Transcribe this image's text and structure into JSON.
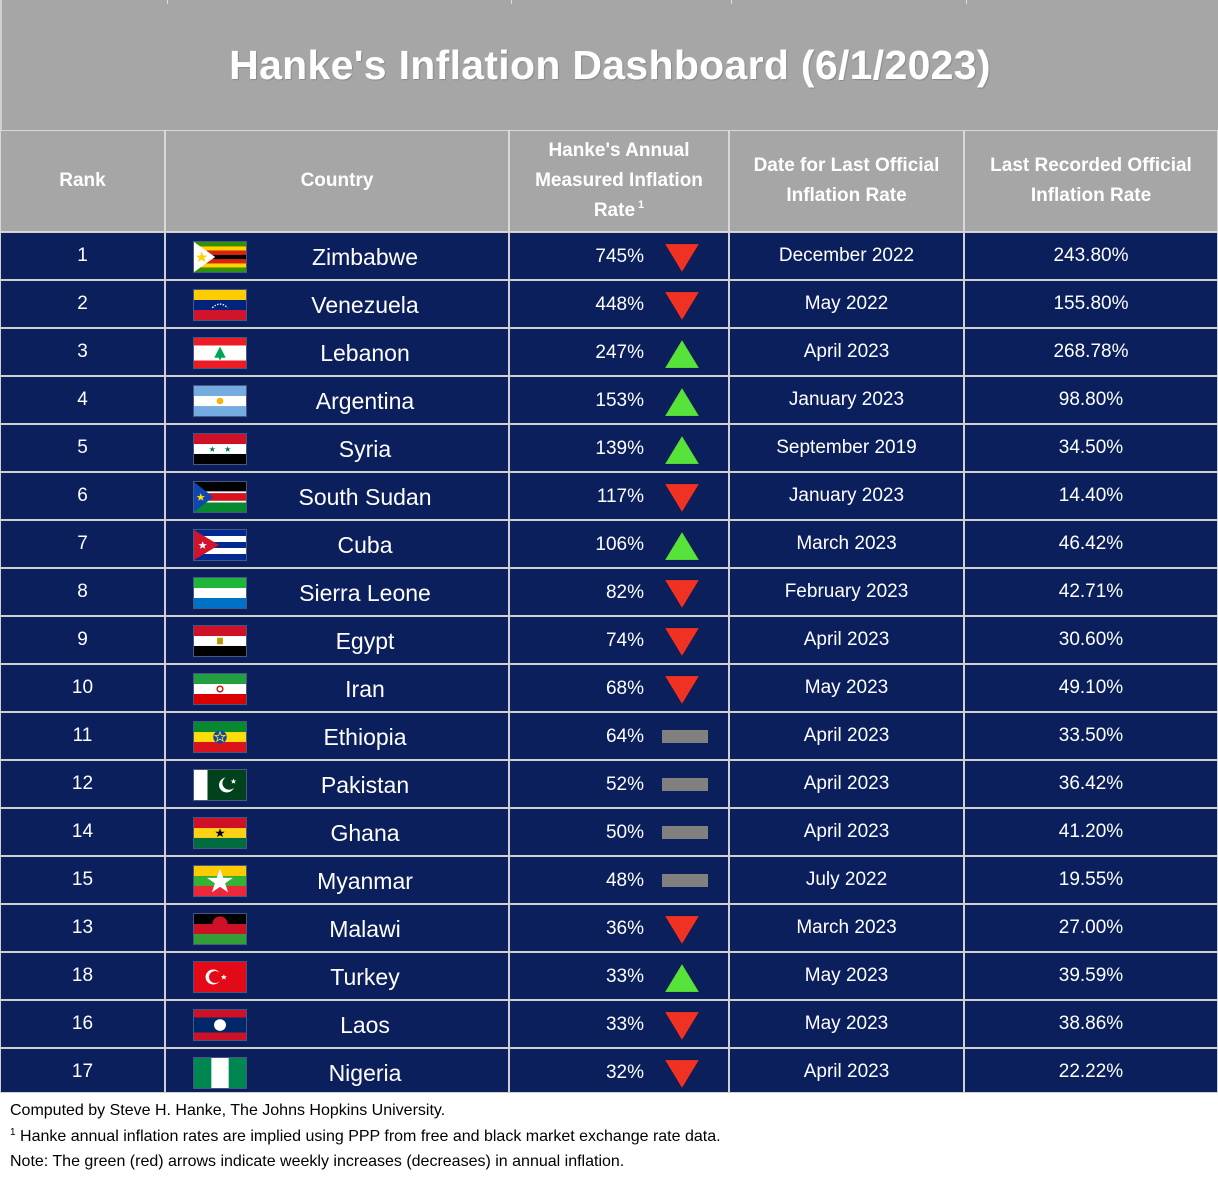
{
  "title": "Hanke's Inflation Dashboard (6/1/2023)",
  "columns": {
    "rank": "Rank",
    "country": "Country",
    "hanke_line1": "Hanke's Annual",
    "hanke_line2": "Measured Inflation",
    "hanke_line3": "Rate",
    "hanke_sup": "1",
    "date_line1": "Date for Last Official",
    "date_line2": "Inflation Rate",
    "official_line1": "Last Recorded Official",
    "official_line2": "Inflation Rate"
  },
  "colors": {
    "header_bg": "#a6a6a6",
    "row_bg": "#0a1f5c",
    "arrow_up": "#57e33b",
    "arrow_down": "#ef3222",
    "no_change": "#808080"
  },
  "chart_data": {
    "type": "table",
    "title": "Hanke's Inflation Dashboard (6/1/2023)",
    "rows": [
      {
        "rank": "1",
        "country": "Zimbabwe",
        "flag": "zimbabwe-flag",
        "hanke_rate": "745%",
        "trend": "down",
        "last_date": "December 2022",
        "official_rate": "243.80%"
      },
      {
        "rank": "2",
        "country": "Venezuela",
        "flag": "venezuela-flag",
        "hanke_rate": "448%",
        "trend": "down",
        "last_date": "May 2022",
        "official_rate": "155.80%"
      },
      {
        "rank": "3",
        "country": "Lebanon",
        "flag": "lebanon-flag",
        "hanke_rate": "247%",
        "trend": "up",
        "last_date": "April 2023",
        "official_rate": "268.78%"
      },
      {
        "rank": "4",
        "country": "Argentina",
        "flag": "argentina-flag",
        "hanke_rate": "153%",
        "trend": "up",
        "last_date": "January 2023",
        "official_rate": "98.80%"
      },
      {
        "rank": "5",
        "country": "Syria",
        "flag": "syria-flag",
        "hanke_rate": "139%",
        "trend": "up",
        "last_date": "September 2019",
        "official_rate": "34.50%"
      },
      {
        "rank": "6",
        "country": "South Sudan",
        "flag": "south-sudan-flag",
        "hanke_rate": "117%",
        "trend": "down",
        "last_date": "January 2023",
        "official_rate": "14.40%"
      },
      {
        "rank": "7",
        "country": "Cuba",
        "flag": "cuba-flag",
        "hanke_rate": "106%",
        "trend": "up",
        "last_date": "March 2023",
        "official_rate": "46.42%"
      },
      {
        "rank": "8",
        "country": "Sierra Leone",
        "flag": "sierra-leone-flag",
        "hanke_rate": "82%",
        "trend": "down",
        "last_date": "February 2023",
        "official_rate": "42.71%"
      },
      {
        "rank": "9",
        "country": "Egypt",
        "flag": "egypt-flag",
        "hanke_rate": "74%",
        "trend": "down",
        "last_date": "April 2023",
        "official_rate": "30.60%"
      },
      {
        "rank": "10",
        "country": "Iran",
        "flag": "iran-flag",
        "hanke_rate": "68%",
        "trend": "down",
        "last_date": "May 2023",
        "official_rate": "49.10%"
      },
      {
        "rank": "11",
        "country": "Ethiopia",
        "flag": "ethiopia-flag",
        "hanke_rate": "64%",
        "trend": "flat",
        "last_date": "April 2023",
        "official_rate": "33.50%"
      },
      {
        "rank": "12",
        "country": "Pakistan",
        "flag": "pakistan-flag",
        "hanke_rate": "52%",
        "trend": "flat",
        "last_date": "April 2023",
        "official_rate": "36.42%"
      },
      {
        "rank": "14",
        "country": "Ghana",
        "flag": "ghana-flag",
        "hanke_rate": "50%",
        "trend": "flat",
        "last_date": "April 2023",
        "official_rate": "41.20%"
      },
      {
        "rank": "15",
        "country": "Myanmar",
        "flag": "myanmar-flag",
        "hanke_rate": "48%",
        "trend": "flat",
        "last_date": "July 2022",
        "official_rate": "19.55%"
      },
      {
        "rank": "13",
        "country": "Malawi",
        "flag": "malawi-flag",
        "hanke_rate": "36%",
        "trend": "down",
        "last_date": "March 2023",
        "official_rate": "27.00%"
      },
      {
        "rank": "18",
        "country": "Turkey",
        "flag": "turkey-flag",
        "hanke_rate": "33%",
        "trend": "up",
        "last_date": "May 2023",
        "official_rate": "39.59%"
      },
      {
        "rank": "16",
        "country": "Laos",
        "flag": "laos-flag",
        "hanke_rate": "33%",
        "trend": "down",
        "last_date": "May 2023",
        "official_rate": "38.86%"
      },
      {
        "rank": "17",
        "country": "Nigeria",
        "flag": "nigeria-flag",
        "hanke_rate": "32%",
        "trend": "down",
        "last_date": "April 2023",
        "official_rate": "22.22%"
      }
    ]
  },
  "footer": {
    "line1": "Computed by Steve H. Hanke, The Johns Hopkins University.",
    "line2_sup": "1",
    "line2": " Hanke annual inflation rates are implied using PPP from free and black market exchange rate data.",
    "line3": "Note: The green (red) arrows indicate weekly increases (decreases) in annual inflation."
  }
}
